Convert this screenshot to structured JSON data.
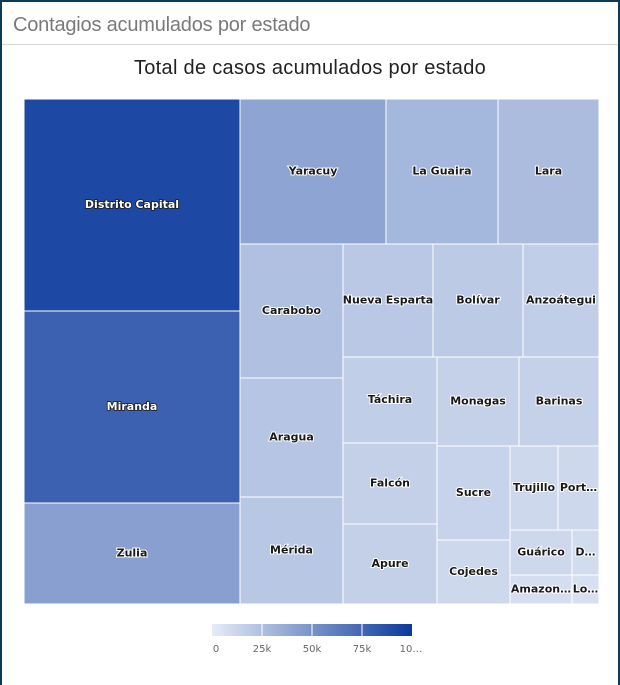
{
  "panel": {
    "title": "Contagios acumulados por estado"
  },
  "chart_data": {
    "type": "treemap",
    "title": "Total de casos acumulados por estado",
    "color_scale": {
      "min_color": "#e6ecf7",
      "max_color": "#0b3a9c",
      "min": 0,
      "max": 100000
    },
    "legend": {
      "ticks": [
        "0",
        "25k",
        "50k",
        "75k",
        "10…"
      ]
    },
    "tiles": [
      {
        "label": "Distrito Capital",
        "value": 92000
      },
      {
        "label": "Miranda",
        "value": 78000
      },
      {
        "label": "Zulia",
        "value": 43000
      },
      {
        "label": "Yaracuy",
        "value": 40000
      },
      {
        "label": "La Guaira",
        "value": 30000
      },
      {
        "label": "Lara",
        "value": 27000
      },
      {
        "label": "Carabobo",
        "value": 25000
      },
      {
        "label": "Aragua",
        "value": 22000
      },
      {
        "label": "Mérida",
        "value": 21000
      },
      {
        "label": "Nueva Esparta",
        "value": 20000
      },
      {
        "label": "Bolívar",
        "value": 19000
      },
      {
        "label": "Anzoátegui",
        "value": 17000
      },
      {
        "label": "Táchira",
        "value": 17000
      },
      {
        "label": "Monagas",
        "value": 15000
      },
      {
        "label": "Barinas",
        "value": 15000
      },
      {
        "label": "Falcón",
        "value": 16000
      },
      {
        "label": "Apure",
        "value": 16000
      },
      {
        "label": "Sucre",
        "value": 14000
      },
      {
        "label": "Trujillo",
        "value": 11000
      },
      {
        "label": "Port…",
        "value": 11000
      },
      {
        "label": "Cojedes",
        "value": 11000
      },
      {
        "label": "Guárico",
        "value": 11000
      },
      {
        "label": "D…",
        "value": 9000
      },
      {
        "label": "Amazon…",
        "value": 8000
      },
      {
        "label": "Lo…",
        "value": 7000
      }
    ]
  }
}
